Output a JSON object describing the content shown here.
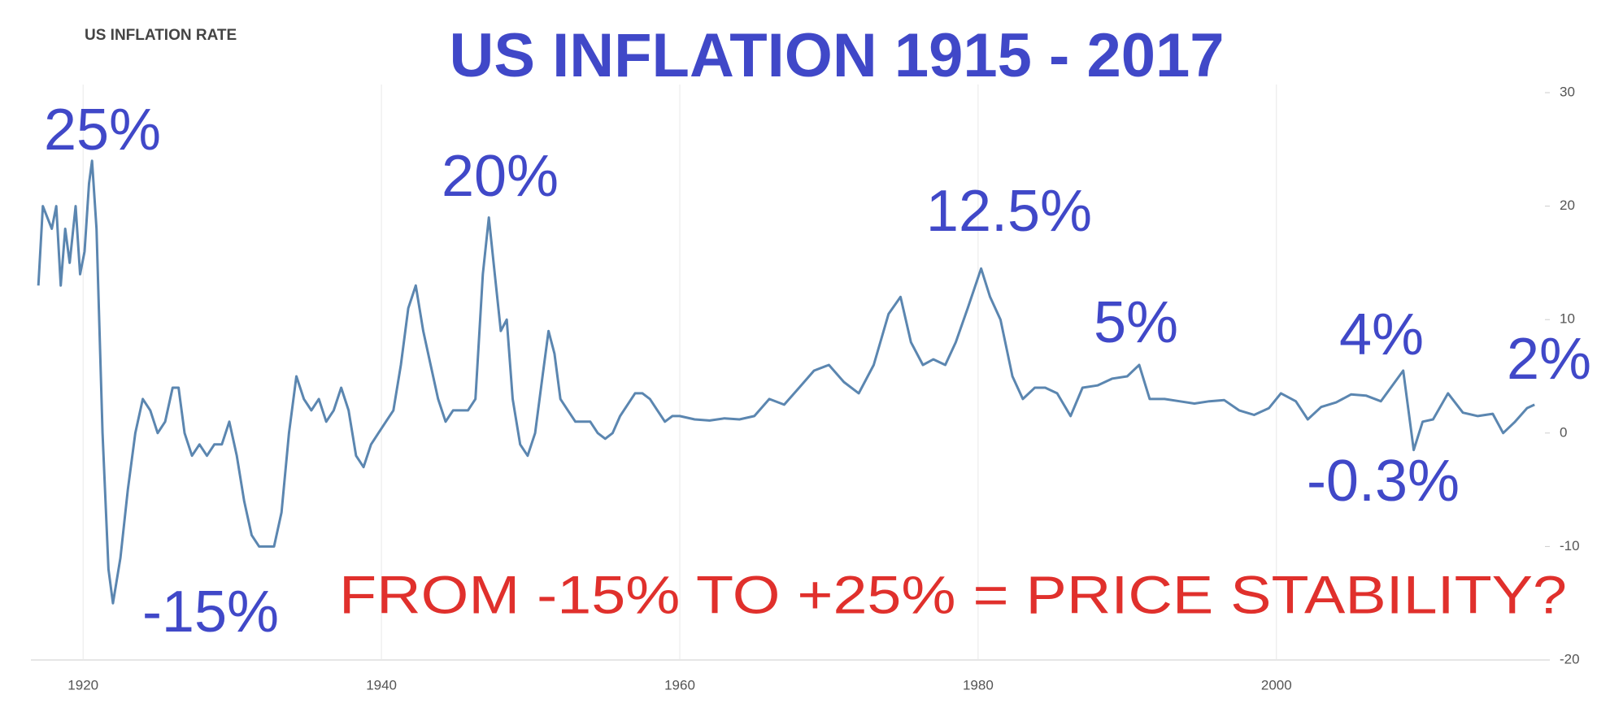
{
  "chart_data": {
    "type": "line",
    "subtitle": "US INFLATION RATE",
    "title": "US INFLATION 1915 - 2017",
    "annotations": [
      "25%",
      "20%",
      "12.5%",
      "5%",
      "4%",
      "2%",
      "-15%",
      "-0.3%",
      "FROM -15% TO +25% = PRICE STABILITY?"
    ],
    "xlim": [
      1916.5,
      2018
    ],
    "xticks": [
      1920,
      1940,
      1960,
      1980,
      2000
    ],
    "ylim": [
      -20,
      30
    ],
    "yticks": [
      30,
      20,
      10,
      0,
      -10,
      -20
    ],
    "grid": true,
    "series": [
      {
        "color": "#5b86b0",
        "x": [
          1917.0,
          1917.3,
          1917.6,
          1917.9,
          1918.2,
          1918.5,
          1918.8,
          1919.1,
          1919.5,
          1919.8,
          1920.1,
          1920.4,
          1920.6,
          1920.9,
          1921.3,
          1921.7,
          1922.0,
          1922.5,
          1923.0,
          1923.5,
          1924.0,
          1924.5,
          1925.0,
          1925.5,
          1926.0,
          1926.4,
          1926.8,
          1927.3,
          1927.8,
          1928.3,
          1928.8,
          1929.3,
          1929.8,
          1930.3,
          1930.8,
          1931.3,
          1931.8,
          1932.3,
          1932.8,
          1933.3,
          1933.8,
          1934.3,
          1934.8,
          1935.3,
          1935.8,
          1936.3,
          1936.8,
          1937.3,
          1937.8,
          1938.3,
          1938.8,
          1939.3,
          1939.8,
          1940.3,
          1940.8,
          1941.3,
          1941.8,
          1942.3,
          1942.8,
          1943.3,
          1943.8,
          1944.3,
          1944.8,
          1945.3,
          1945.8,
          1946.3,
          1946.8,
          1947.2,
          1947.6,
          1948.0,
          1948.4,
          1948.8,
          1949.3,
          1949.8,
          1950.3,
          1950.8,
          1951.2,
          1951.6,
          1952.0,
          1952.5,
          1953.0,
          1953.5,
          1954.0,
          1954.5,
          1955.0,
          1955.5,
          1956.0,
          1956.5,
          1957.0,
          1957.5,
          1958.0,
          1958.5,
          1959.0,
          1959.5,
          1960.0,
          1961.0,
          1962.0,
          1963.0,
          1964.0,
          1965.0,
          1966.0,
          1967.0,
          1968.0,
          1969.0,
          1970.0,
          1971.0,
          1972.0,
          1973.0,
          1974.0,
          1974.8,
          1975.5,
          1976.3,
          1977.0,
          1977.8,
          1978.5,
          1979.3,
          1980.2,
          1980.8,
          1981.5,
          1982.3,
          1983.0,
          1983.8,
          1984.5,
          1985.3,
          1986.2,
          1987.0,
          1988.0,
          1989.0,
          1990.0,
          1990.8,
          1991.5,
          1992.5,
          1993.5,
          1994.5,
          1995.5,
          1996.5,
          1997.5,
          1998.5,
          1999.5,
          2000.3,
          2001.3,
          2002.1,
          2003.0,
          2004.0,
          2005.0,
          2006.0,
          2007.0,
          2008.5,
          2009.2,
          2009.8,
          2010.5,
          2011.5,
          2012.5,
          2013.5,
          2014.5,
          2015.2,
          2016.0,
          2016.8,
          2017.3
        ],
        "values": [
          13,
          20,
          19,
          18,
          20,
          13,
          18,
          15,
          20,
          14,
          16,
          22,
          24,
          18,
          0,
          -12,
          -15,
          -11,
          -5,
          0,
          3,
          2,
          0,
          1,
          4,
          4,
          0,
          -2,
          -1,
          -2,
          -1,
          -1,
          1,
          -2,
          -6,
          -9,
          -10,
          -10,
          -10,
          -7,
          0,
          5,
          3,
          2,
          3,
          1,
          2,
          4,
          2,
          -2,
          -3,
          -1,
          0,
          1,
          2,
          6,
          11,
          13,
          9,
          6,
          3,
          1,
          2,
          2,
          2,
          3,
          14,
          19,
          14,
          9,
          10,
          3,
          -1,
          -2,
          0,
          5,
          9,
          7,
          3,
          2,
          1,
          1,
          1,
          0,
          -0.5,
          0,
          1.5,
          2.5,
          3.5,
          3.5,
          3,
          2,
          1,
          1.5,
          1.5,
          1.2,
          1.1,
          1.3,
          1.2,
          1.5,
          3,
          2.5,
          4,
          5.5,
          6,
          4.5,
          3.5,
          6,
          10.5,
          12,
          8,
          6,
          6.5,
          6,
          8,
          11,
          14.5,
          12,
          10,
          5,
          3,
          4,
          4,
          3.5,
          1.5,
          4,
          4.2,
          4.8,
          5,
          6,
          3,
          3,
          2.8,
          2.6,
          2.8,
          2.9,
          2,
          1.6,
          2.2,
          3.5,
          2.8,
          1.2,
          2.3,
          2.7,
          3.4,
          3.3,
          2.8,
          5.5,
          -1.5,
          1,
          1.2,
          3.5,
          1.8,
          1.5,
          1.7,
          0,
          1,
          2.2,
          2.5
        ]
      }
    ]
  }
}
